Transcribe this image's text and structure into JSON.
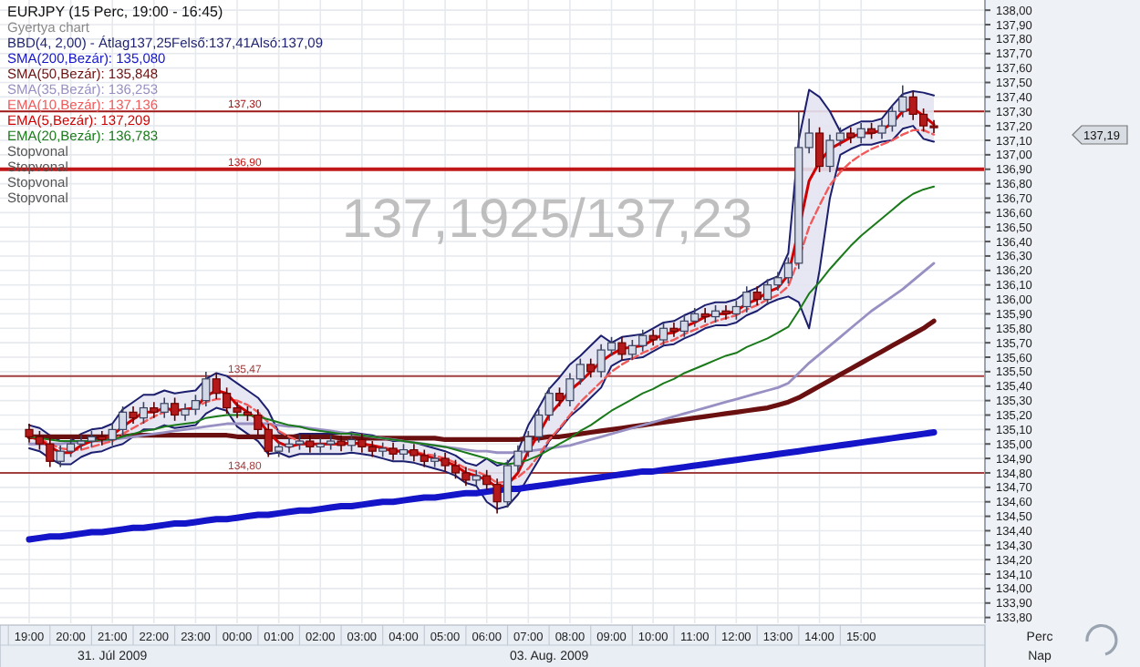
{
  "chart_data": {
    "type": "candlestick",
    "title": "EURJPY (15 Perc, 19:00 - 16:45)",
    "subtitle": "Gyertya chart",
    "xlabel": "Perc",
    "categories": [
      "19:00",
      null,
      null,
      null,
      "20:00",
      null,
      null,
      null,
      "21:00",
      null,
      null,
      null,
      "22:00",
      null,
      null,
      null,
      "23:00",
      null,
      null,
      null,
      "00:00",
      null,
      null,
      null,
      "01:00",
      null,
      null,
      null,
      "02:00",
      null,
      null,
      null,
      "03:00",
      null,
      null,
      null,
      "04:00",
      null,
      null,
      null,
      "05:00",
      null,
      null,
      null,
      "06:00",
      null,
      null,
      null,
      "07:00",
      null,
      null,
      null,
      "08:00",
      null,
      null,
      null,
      "09:00",
      null,
      null,
      null,
      "10:00",
      null,
      null,
      null,
      "11:00",
      null,
      null,
      null,
      "12:00",
      null,
      null,
      null,
      "13:00",
      null,
      null,
      null,
      "14:00",
      null,
      null,
      null,
      "15:00",
      null,
      null,
      null,
      null,
      null,
      null,
      null
    ],
    "ohlc": [
      [
        135.1,
        135.14,
        135.01,
        135.05
      ],
      [
        135.05,
        135.09,
        134.96,
        135.0
      ],
      [
        135.0,
        135.04,
        134.84,
        134.88
      ],
      [
        134.88,
        134.99,
        134.84,
        134.95
      ],
      [
        134.95,
        135.04,
        134.91,
        135.0
      ],
      [
        135.0,
        135.06,
        134.96,
        135.02
      ],
      [
        135.02,
        135.09,
        134.98,
        135.05
      ],
      [
        135.05,
        135.09,
        134.99,
        135.03
      ],
      [
        135.03,
        135.14,
        134.99,
        135.1
      ],
      [
        135.1,
        135.26,
        135.06,
        135.22
      ],
      [
        135.22,
        135.26,
        135.14,
        135.18
      ],
      [
        135.18,
        135.29,
        135.14,
        135.25
      ],
      [
        135.25,
        135.29,
        135.18,
        135.22
      ],
      [
        135.22,
        135.32,
        135.18,
        135.28
      ],
      [
        135.28,
        135.32,
        135.16,
        135.2
      ],
      [
        135.2,
        135.28,
        135.16,
        135.24
      ],
      [
        135.24,
        135.34,
        135.2,
        135.3
      ],
      [
        135.3,
        135.5,
        135.26,
        135.45
      ],
      [
        135.45,
        135.49,
        135.31,
        135.35
      ],
      [
        135.35,
        135.39,
        135.21,
        135.25
      ],
      [
        135.25,
        135.29,
        135.18,
        135.22
      ],
      [
        135.22,
        135.26,
        135.16,
        135.2
      ],
      [
        135.2,
        135.24,
        135.06,
        135.1
      ],
      [
        135.1,
        135.14,
        134.91,
        134.95
      ],
      [
        134.95,
        135.02,
        134.91,
        134.98
      ],
      [
        134.98,
        135.04,
        134.94,
        135.0
      ],
      [
        135.0,
        135.06,
        134.96,
        135.02
      ],
      [
        135.02,
        135.06,
        134.94,
        134.98
      ],
      [
        134.98,
        135.04,
        134.94,
        135.0
      ],
      [
        135.0,
        135.06,
        134.96,
        135.02
      ],
      [
        135.02,
        135.06,
        134.95,
        134.99
      ],
      [
        134.99,
        135.07,
        134.95,
        135.03
      ],
      [
        135.03,
        135.07,
        134.94,
        134.98
      ],
      [
        134.98,
        135.02,
        134.91,
        134.95
      ],
      [
        134.95,
        135.01,
        134.91,
        134.97
      ],
      [
        134.97,
        135.01,
        134.89,
        134.93
      ],
      [
        134.93,
        135.0,
        134.89,
        134.96
      ],
      [
        134.96,
        135.0,
        134.88,
        134.92
      ],
      [
        134.92,
        134.96,
        134.84,
        134.88
      ],
      [
        134.88,
        134.94,
        134.84,
        134.9
      ],
      [
        134.9,
        134.94,
        134.81,
        134.85
      ],
      [
        134.85,
        134.89,
        134.76,
        134.8
      ],
      [
        134.8,
        134.84,
        134.71,
        134.75
      ],
      [
        134.75,
        134.82,
        134.71,
        134.78
      ],
      [
        134.78,
        134.82,
        134.68,
        134.72
      ],
      [
        134.72,
        134.76,
        134.52,
        134.6
      ],
      [
        134.6,
        134.89,
        134.56,
        134.85
      ],
      [
        134.85,
        134.99,
        134.81,
        134.95
      ],
      [
        134.95,
        135.09,
        134.91,
        135.05
      ],
      [
        135.05,
        135.24,
        135.01,
        135.2
      ],
      [
        135.2,
        135.39,
        135.16,
        135.35
      ],
      [
        135.35,
        135.39,
        135.26,
        135.3
      ],
      [
        135.3,
        135.49,
        135.26,
        135.45
      ],
      [
        135.45,
        135.59,
        135.41,
        135.55
      ],
      [
        135.55,
        135.59,
        135.46,
        135.5
      ],
      [
        135.5,
        135.69,
        135.46,
        135.65
      ],
      [
        135.65,
        135.74,
        135.61,
        135.7
      ],
      [
        135.7,
        135.74,
        135.58,
        135.62
      ],
      [
        135.62,
        135.72,
        135.58,
        135.68
      ],
      [
        135.68,
        135.79,
        135.64,
        135.75
      ],
      [
        135.75,
        135.79,
        135.68,
        135.72
      ],
      [
        135.72,
        135.84,
        135.68,
        135.8
      ],
      [
        135.8,
        135.84,
        135.74,
        135.78
      ],
      [
        135.78,
        135.89,
        135.74,
        135.85
      ],
      [
        135.85,
        135.94,
        135.81,
        135.9
      ],
      [
        135.9,
        135.94,
        135.84,
        135.88
      ],
      [
        135.88,
        135.96,
        135.84,
        135.92
      ],
      [
        135.92,
        135.96,
        135.86,
        135.9
      ],
      [
        135.9,
        135.99,
        135.86,
        135.95
      ],
      [
        135.95,
        136.09,
        135.91,
        136.05
      ],
      [
        136.05,
        136.09,
        135.96,
        136.0
      ],
      [
        136.0,
        136.14,
        135.96,
        136.1
      ],
      [
        136.1,
        136.19,
        136.06,
        136.15
      ],
      [
        136.15,
        136.29,
        136.11,
        136.25
      ],
      [
        136.25,
        137.3,
        136.21,
        137.05
      ],
      [
        137.05,
        137.25,
        137.01,
        137.15
      ],
      [
        137.15,
        137.19,
        136.88,
        136.92
      ],
      [
        136.92,
        137.14,
        136.88,
        137.1
      ],
      [
        137.1,
        137.19,
        137.06,
        137.15
      ],
      [
        137.15,
        137.19,
        137.08,
        137.12
      ],
      [
        137.12,
        137.22,
        137.08,
        137.18
      ],
      [
        137.18,
        137.22,
        137.11,
        137.15
      ],
      [
        137.15,
        137.24,
        137.11,
        137.2
      ],
      [
        137.2,
        137.34,
        137.16,
        137.3
      ],
      [
        137.3,
        137.48,
        137.26,
        137.4
      ],
      [
        137.4,
        137.44,
        137.24,
        137.28
      ],
      [
        137.28,
        137.32,
        137.16,
        137.2
      ],
      [
        137.2,
        137.24,
        137.15,
        137.19
      ]
    ],
    "series": [
      {
        "name": "BBD(4, 2,00) - Átlag137,25Felső:137,41Alsó:137,09",
        "type": "line",
        "color": "#1c1f6e",
        "values": [
          134.97,
          134.95,
          134.9,
          134.86,
          134.86,
          134.91,
          134.94,
          134.95,
          134.98,
          135.0,
          135.05,
          135.1,
          135.1,
          135.13,
          135.11,
          135.12,
          135.13,
          135.21,
          135.25,
          135.23,
          135.12,
          135.07,
          135.02,
          134.93,
          134.94,
          134.91,
          134.93,
          134.93,
          134.93,
          134.93,
          134.93,
          134.94,
          134.93,
          134.92,
          134.9,
          134.88,
          134.88,
          134.87,
          134.85,
          134.83,
          134.81,
          134.78,
          134.73,
          134.71,
          134.6,
          134.55,
          134.57,
          134.65,
          134.77,
          134.89,
          135.02,
          135.1,
          135.19,
          135.25,
          135.32,
          135.39,
          135.54,
          135.58,
          135.59,
          135.6,
          135.64,
          135.68,
          135.69,
          135.73,
          135.76,
          135.8,
          135.82,
          135.82,
          135.84,
          135.89,
          135.92,
          135.97,
          136.0,
          136.02,
          135.98,
          135.8,
          136.2,
          136.7,
          137.0,
          137.04,
          137.07,
          137.07,
          137.09,
          137.1,
          137.18,
          137.2,
          137.11,
          137.09
        ]
      },
      {
        "type": "line",
        "color": "#1c1f6e",
        "values": [
          135.13,
          135.11,
          135.06,
          135.02,
          135.02,
          135.07,
          135.1,
          135.11,
          135.14,
          135.24,
          135.29,
          135.34,
          135.34,
          135.37,
          135.35,
          135.36,
          135.37,
          135.45,
          135.49,
          135.47,
          135.42,
          135.37,
          135.32,
          135.23,
          135.08,
          135.05,
          135.07,
          135.07,
          135.07,
          135.07,
          135.07,
          135.08,
          135.07,
          135.06,
          135.04,
          135.02,
          135.02,
          135.01,
          134.99,
          134.97,
          134.95,
          134.92,
          134.87,
          134.85,
          134.9,
          134.85,
          134.87,
          134.95,
          135.13,
          135.25,
          135.38,
          135.46,
          135.55,
          135.61,
          135.68,
          135.75,
          135.7,
          135.74,
          135.75,
          135.76,
          135.8,
          135.84,
          135.85,
          135.89,
          135.92,
          135.96,
          135.98,
          135.98,
          136.0,
          136.05,
          136.08,
          136.13,
          136.16,
          136.32,
          137.1,
          137.45,
          137.4,
          137.3,
          137.16,
          137.2,
          137.23,
          137.23,
          137.25,
          137.34,
          137.42,
          137.44,
          137.43,
          137.41
        ]
      },
      {
        "name": "SMA(200,Bezár): 135,080",
        "type": "line",
        "color": "#1414c8",
        "values": [
          134.34,
          134.35,
          134.36,
          134.36,
          134.37,
          134.38,
          134.39,
          134.39,
          134.4,
          134.41,
          134.42,
          134.42,
          134.43,
          134.44,
          134.45,
          134.45,
          134.46,
          134.47,
          134.48,
          134.48,
          134.49,
          134.5,
          134.51,
          134.51,
          134.52,
          134.53,
          134.54,
          134.54,
          134.55,
          134.56,
          134.57,
          134.57,
          134.58,
          134.59,
          134.6,
          134.6,
          134.61,
          134.62,
          134.63,
          134.63,
          134.64,
          134.65,
          134.66,
          134.66,
          134.67,
          134.68,
          134.69,
          134.69,
          134.7,
          134.71,
          134.72,
          134.73,
          134.74,
          134.75,
          134.76,
          134.77,
          134.78,
          134.79,
          134.8,
          134.81,
          134.81,
          134.82,
          134.83,
          134.84,
          134.85,
          134.86,
          134.87,
          134.88,
          134.89,
          134.9,
          134.91,
          134.92,
          134.93,
          134.94,
          134.95,
          134.96,
          134.97,
          134.98,
          134.99,
          135.0,
          135.01,
          135.02,
          135.03,
          135.04,
          135.05,
          135.06,
          135.07,
          135.08
        ]
      },
      {
        "name": "SMA(50,Bezár): 135,848",
        "type": "line",
        "color": "#6b1010",
        "values": [
          135.05,
          135.05,
          135.05,
          135.05,
          135.05,
          135.05,
          135.05,
          135.05,
          135.05,
          135.05,
          135.06,
          135.06,
          135.06,
          135.06,
          135.06,
          135.06,
          135.06,
          135.06,
          135.06,
          135.06,
          135.05,
          135.05,
          135.05,
          135.05,
          135.05,
          135.05,
          135.05,
          135.05,
          135.05,
          135.05,
          135.04,
          135.04,
          135.04,
          135.04,
          135.04,
          135.04,
          135.04,
          135.04,
          135.04,
          135.04,
          135.03,
          135.03,
          135.03,
          135.03,
          135.03,
          135.03,
          135.03,
          135.03,
          135.04,
          135.04,
          135.05,
          135.05,
          135.06,
          135.07,
          135.08,
          135.09,
          135.1,
          135.11,
          135.12,
          135.13,
          135.14,
          135.15,
          135.16,
          135.17,
          135.18,
          135.19,
          135.2,
          135.21,
          135.22,
          135.23,
          135.24,
          135.25,
          135.27,
          135.29,
          135.32,
          135.36,
          135.4,
          135.44,
          135.48,
          135.52,
          135.56,
          135.6,
          135.64,
          135.68,
          135.72,
          135.76,
          135.8,
          135.85
        ]
      },
      {
        "name": "SMA(35,Bezár): 136,253",
        "type": "line",
        "color": "#9890c2",
        "values": [
          135.0,
          135.0,
          135.0,
          135.0,
          135.01,
          135.01,
          135.02,
          135.02,
          135.03,
          135.04,
          135.05,
          135.06,
          135.07,
          135.08,
          135.09,
          135.1,
          135.11,
          135.12,
          135.13,
          135.14,
          135.14,
          135.14,
          135.14,
          135.14,
          135.13,
          135.12,
          135.12,
          135.11,
          135.1,
          135.09,
          135.08,
          135.07,
          135.06,
          135.05,
          135.04,
          135.03,
          135.02,
          135.01,
          135.0,
          134.99,
          134.98,
          134.97,
          134.96,
          134.95,
          134.95,
          134.94,
          134.94,
          134.94,
          134.95,
          134.96,
          134.97,
          134.98,
          134.99,
          135.01,
          135.03,
          135.05,
          135.07,
          135.09,
          135.11,
          135.13,
          135.15,
          135.17,
          135.19,
          135.21,
          135.23,
          135.25,
          135.27,
          135.29,
          135.31,
          135.33,
          135.35,
          135.37,
          135.39,
          135.42,
          135.49,
          135.56,
          135.62,
          135.68,
          135.74,
          135.8,
          135.86,
          135.92,
          135.97,
          136.02,
          136.07,
          136.13,
          136.19,
          136.25
        ]
      },
      {
        "name": "EMA(10,Bezár): 137,136",
        "type": "line",
        "color": "#f05a5a",
        "line_style": "dashed",
        "values": [
          135.05,
          135.04,
          135.0,
          134.97,
          134.96,
          134.96,
          134.98,
          135.0,
          135.02,
          135.07,
          135.11,
          135.15,
          135.19,
          135.22,
          135.23,
          135.24,
          135.25,
          135.29,
          135.31,
          135.31,
          135.3,
          135.27,
          135.22,
          135.15,
          135.09,
          135.05,
          135.02,
          135.0,
          135.0,
          135.0,
          135.0,
          135.0,
          135.0,
          134.99,
          134.98,
          134.96,
          134.95,
          134.95,
          134.93,
          134.92,
          134.9,
          134.87,
          134.83,
          134.81,
          134.78,
          134.73,
          134.74,
          134.77,
          134.83,
          134.92,
          135.03,
          135.11,
          135.2,
          135.29,
          135.36,
          135.43,
          135.5,
          135.55,
          135.59,
          135.63,
          135.66,
          135.7,
          135.72,
          135.76,
          135.79,
          135.82,
          135.85,
          135.87,
          135.89,
          135.93,
          135.96,
          136.0,
          136.03,
          136.09,
          136.28,
          136.5,
          136.65,
          136.79,
          136.88,
          136.95,
          137.0,
          137.04,
          137.07,
          137.1,
          137.14,
          137.17,
          137.17,
          137.14
        ]
      },
      {
        "name": "EMA(5,Bezár): 137,209",
        "type": "line",
        "color": "#d00000",
        "values": [
          135.05,
          135.03,
          134.98,
          134.94,
          134.94,
          134.99,
          135.02,
          135.03,
          135.06,
          135.12,
          135.17,
          135.22,
          135.22,
          135.25,
          135.23,
          135.24,
          135.25,
          135.33,
          135.37,
          135.35,
          135.27,
          135.22,
          135.17,
          135.08,
          135.01,
          134.98,
          135.0,
          135.0,
          135.0,
          135.0,
          135.0,
          135.01,
          135.0,
          134.99,
          134.97,
          134.95,
          134.95,
          134.94,
          134.92,
          134.9,
          134.88,
          134.85,
          134.8,
          134.78,
          134.75,
          134.7,
          134.72,
          134.8,
          134.95,
          135.07,
          135.2,
          135.28,
          135.37,
          135.43,
          135.5,
          135.57,
          135.62,
          135.66,
          135.67,
          135.68,
          135.72,
          135.76,
          135.77,
          135.81,
          135.84,
          135.88,
          135.9,
          135.9,
          135.92,
          135.97,
          136.0,
          136.05,
          136.08,
          136.17,
          136.48,
          136.82,
          136.95,
          137.04,
          137.08,
          137.12,
          137.15,
          137.15,
          137.17,
          137.22,
          137.3,
          137.32,
          137.27,
          137.21
        ]
      },
      {
        "name": "EMA(20,Bezár): 136,783",
        "type": "line",
        "color": "#1a7a1a",
        "values": [
          135.05,
          135.04,
          135.03,
          135.02,
          135.02,
          135.02,
          135.02,
          135.03,
          135.03,
          135.05,
          135.07,
          135.09,
          135.1,
          135.12,
          135.13,
          135.14,
          135.15,
          135.18,
          135.19,
          135.2,
          135.2,
          135.2,
          135.19,
          135.17,
          135.15,
          135.13,
          135.12,
          135.1,
          135.09,
          135.08,
          135.07,
          135.07,
          135.06,
          135.05,
          135.04,
          135.03,
          135.02,
          135.01,
          135.0,
          134.99,
          134.98,
          134.96,
          134.94,
          134.92,
          134.9,
          134.87,
          134.86,
          134.87,
          134.89,
          134.92,
          134.96,
          135.0,
          135.04,
          135.09,
          135.13,
          135.18,
          135.23,
          135.27,
          135.31,
          135.35,
          135.38,
          135.42,
          135.45,
          135.49,
          135.52,
          135.55,
          135.58,
          135.61,
          135.63,
          135.67,
          135.7,
          135.73,
          135.77,
          135.81,
          135.92,
          136.04,
          136.12,
          136.21,
          136.29,
          136.37,
          136.44,
          136.5,
          136.56,
          136.62,
          136.68,
          136.73,
          136.76,
          136.78
        ]
      }
    ],
    "ylim": [
      133.76,
      138.02
    ],
    "yticks": [
      {
        "value": 133.8,
        "label": "133,80"
      },
      {
        "value": 133.9,
        "label": "133,90"
      },
      {
        "value": 134.0,
        "label": "134,00"
      },
      {
        "value": 134.1,
        "label": "134,10"
      },
      {
        "value": 134.2,
        "label": "134,20"
      },
      {
        "value": 134.3,
        "label": "134,30"
      },
      {
        "value": 134.4,
        "label": "134,40"
      },
      {
        "value": 134.5,
        "label": "134,50"
      },
      {
        "value": 134.6,
        "label": "134,60"
      },
      {
        "value": 134.7,
        "label": "134,70"
      },
      {
        "value": 134.8,
        "label": "134,80"
      },
      {
        "value": 134.9,
        "label": "134,90"
      },
      {
        "value": 135.0,
        "label": "135,00"
      },
      {
        "value": 135.1,
        "label": "135,10"
      },
      {
        "value": 135.2,
        "label": "135,20"
      },
      {
        "value": 135.3,
        "label": "135,30"
      },
      {
        "value": 135.4,
        "label": "135,40"
      },
      {
        "value": 135.5,
        "label": "135,50"
      },
      {
        "value": 135.6,
        "label": "135,60"
      },
      {
        "value": 135.7,
        "label": "135,70"
      },
      {
        "value": 135.8,
        "label": "135,80"
      },
      {
        "value": 135.9,
        "label": "135,90"
      },
      {
        "value": 136.0,
        "label": "136,00"
      },
      {
        "value": 136.1,
        "label": "136,10"
      },
      {
        "value": 136.2,
        "label": "136,20"
      },
      {
        "value": 136.3,
        "label": "136,30"
      },
      {
        "value": 136.4,
        "label": "136,40"
      },
      {
        "value": 136.5,
        "label": "136,50"
      },
      {
        "value": 136.6,
        "label": "136,60"
      },
      {
        "value": 136.7,
        "label": "136,70"
      },
      {
        "value": 136.8,
        "label": "136,80"
      },
      {
        "value": 136.9,
        "label": "136,90"
      },
      {
        "value": 137.0,
        "label": "137,00"
      },
      {
        "value": 137.1,
        "label": "137,10"
      },
      {
        "value": 137.2,
        "label": "137,20"
      },
      {
        "value": 137.3,
        "label": "137,30"
      },
      {
        "value": 137.4,
        "label": "137,40"
      },
      {
        "value": 137.5,
        "label": "137,50"
      },
      {
        "value": 137.6,
        "label": "137,60"
      },
      {
        "value": 137.7,
        "label": "137,70"
      },
      {
        "value": 137.8,
        "label": "137,80"
      },
      {
        "value": 137.9,
        "label": "137,90"
      },
      {
        "value": 138.0,
        "label": "138,00"
      }
    ],
    "ref_lines": [
      {
        "axis": "y",
        "value": 137.3,
        "label": "137,30",
        "color": "#a01818"
      },
      {
        "axis": "y",
        "value": 136.9,
        "label": "136,90",
        "color": "#c01818"
      },
      {
        "axis": "y",
        "value": 135.47,
        "label": "135,47",
        "color": "#a04040"
      },
      {
        "axis": "y",
        "value": 134.8,
        "label": "134,80",
        "color": "#a04040"
      }
    ],
    "annotations": [
      "137,1925/137,23",
      "31. Júl 2009",
      "03. Aug. 2009",
      "Nap",
      "Stopvonal",
      "Stopvonal",
      "Stopvonal",
      "Stopvonal",
      "137,19"
    ],
    "grid": true,
    "legend": "top left"
  }
}
